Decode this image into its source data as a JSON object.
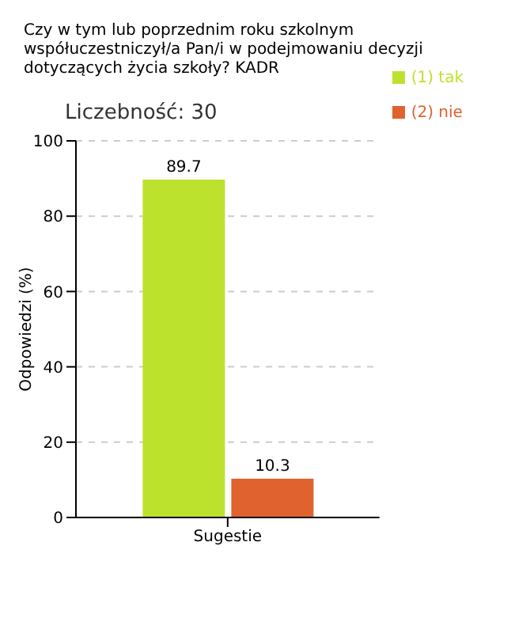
{
  "chart_data": {
    "type": "bar",
    "title": "Czy w tym lub poprzednim roku szkolnym współuczestniczył/a Pan/i w podejmowaniu decyzji dotyczących życia szkoły? KADR",
    "subtitle": "Liczebność: 30",
    "ylabel": "Odpowiedzi (%)",
    "categories": [
      "Sugestie"
    ],
    "series": [
      {
        "name": "(1) tak",
        "color": "#bde22e",
        "values": [
          89.7
        ]
      },
      {
        "name": "(2) nie",
        "color": "#e0622f",
        "values": [
          10.3
        ]
      }
    ],
    "ylim": [
      0,
      100
    ],
    "yticks": [
      0,
      20,
      40,
      60,
      80,
      100
    ],
    "grid": "y",
    "legend": "top right",
    "data_labels": true
  }
}
